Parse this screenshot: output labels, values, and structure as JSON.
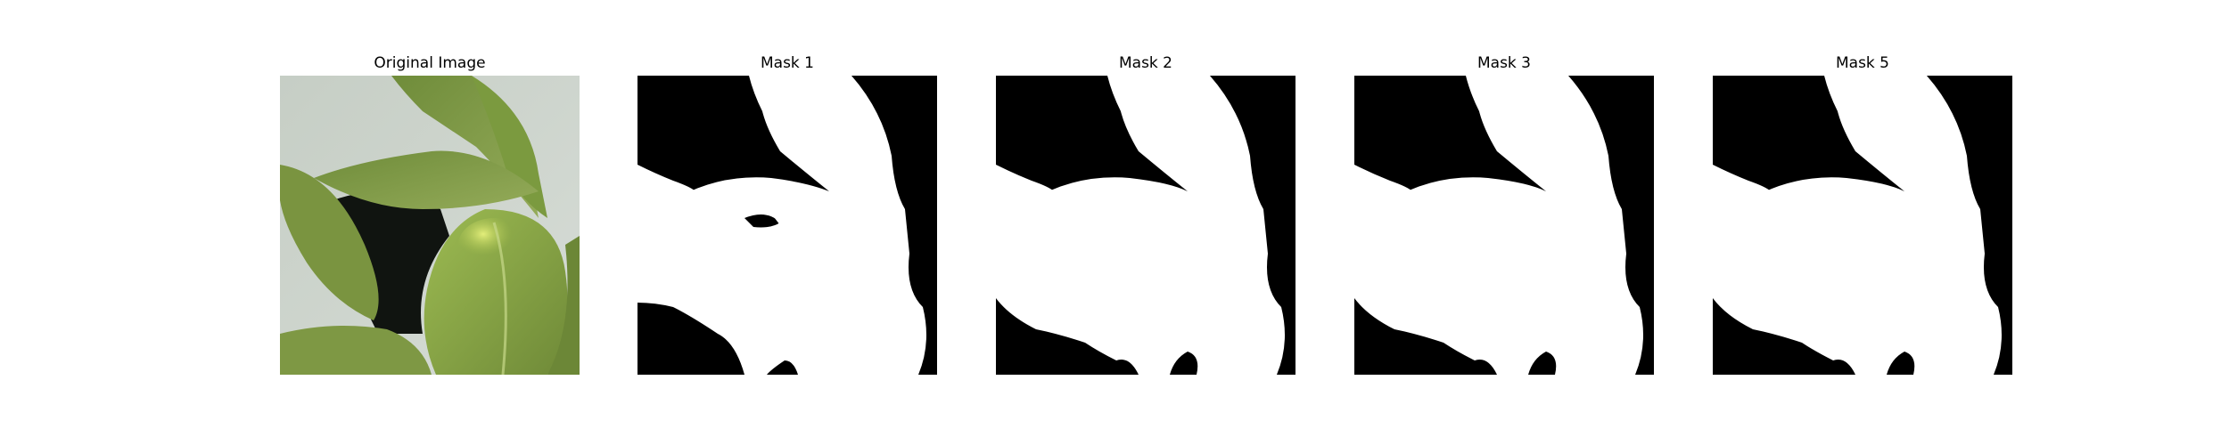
{
  "figure": {
    "panels": [
      {
        "title": "Original Image"
      },
      {
        "title": "Mask 1"
      },
      {
        "title": "Mask 2"
      },
      {
        "title": "Mask 3"
      },
      {
        "title": "Mask 5"
      }
    ]
  },
  "colors": {
    "mask_foreground": "#ffffff",
    "mask_background": "#000000",
    "leaf_green": "#8ea552",
    "background_gray": "#c9d1c9"
  }
}
